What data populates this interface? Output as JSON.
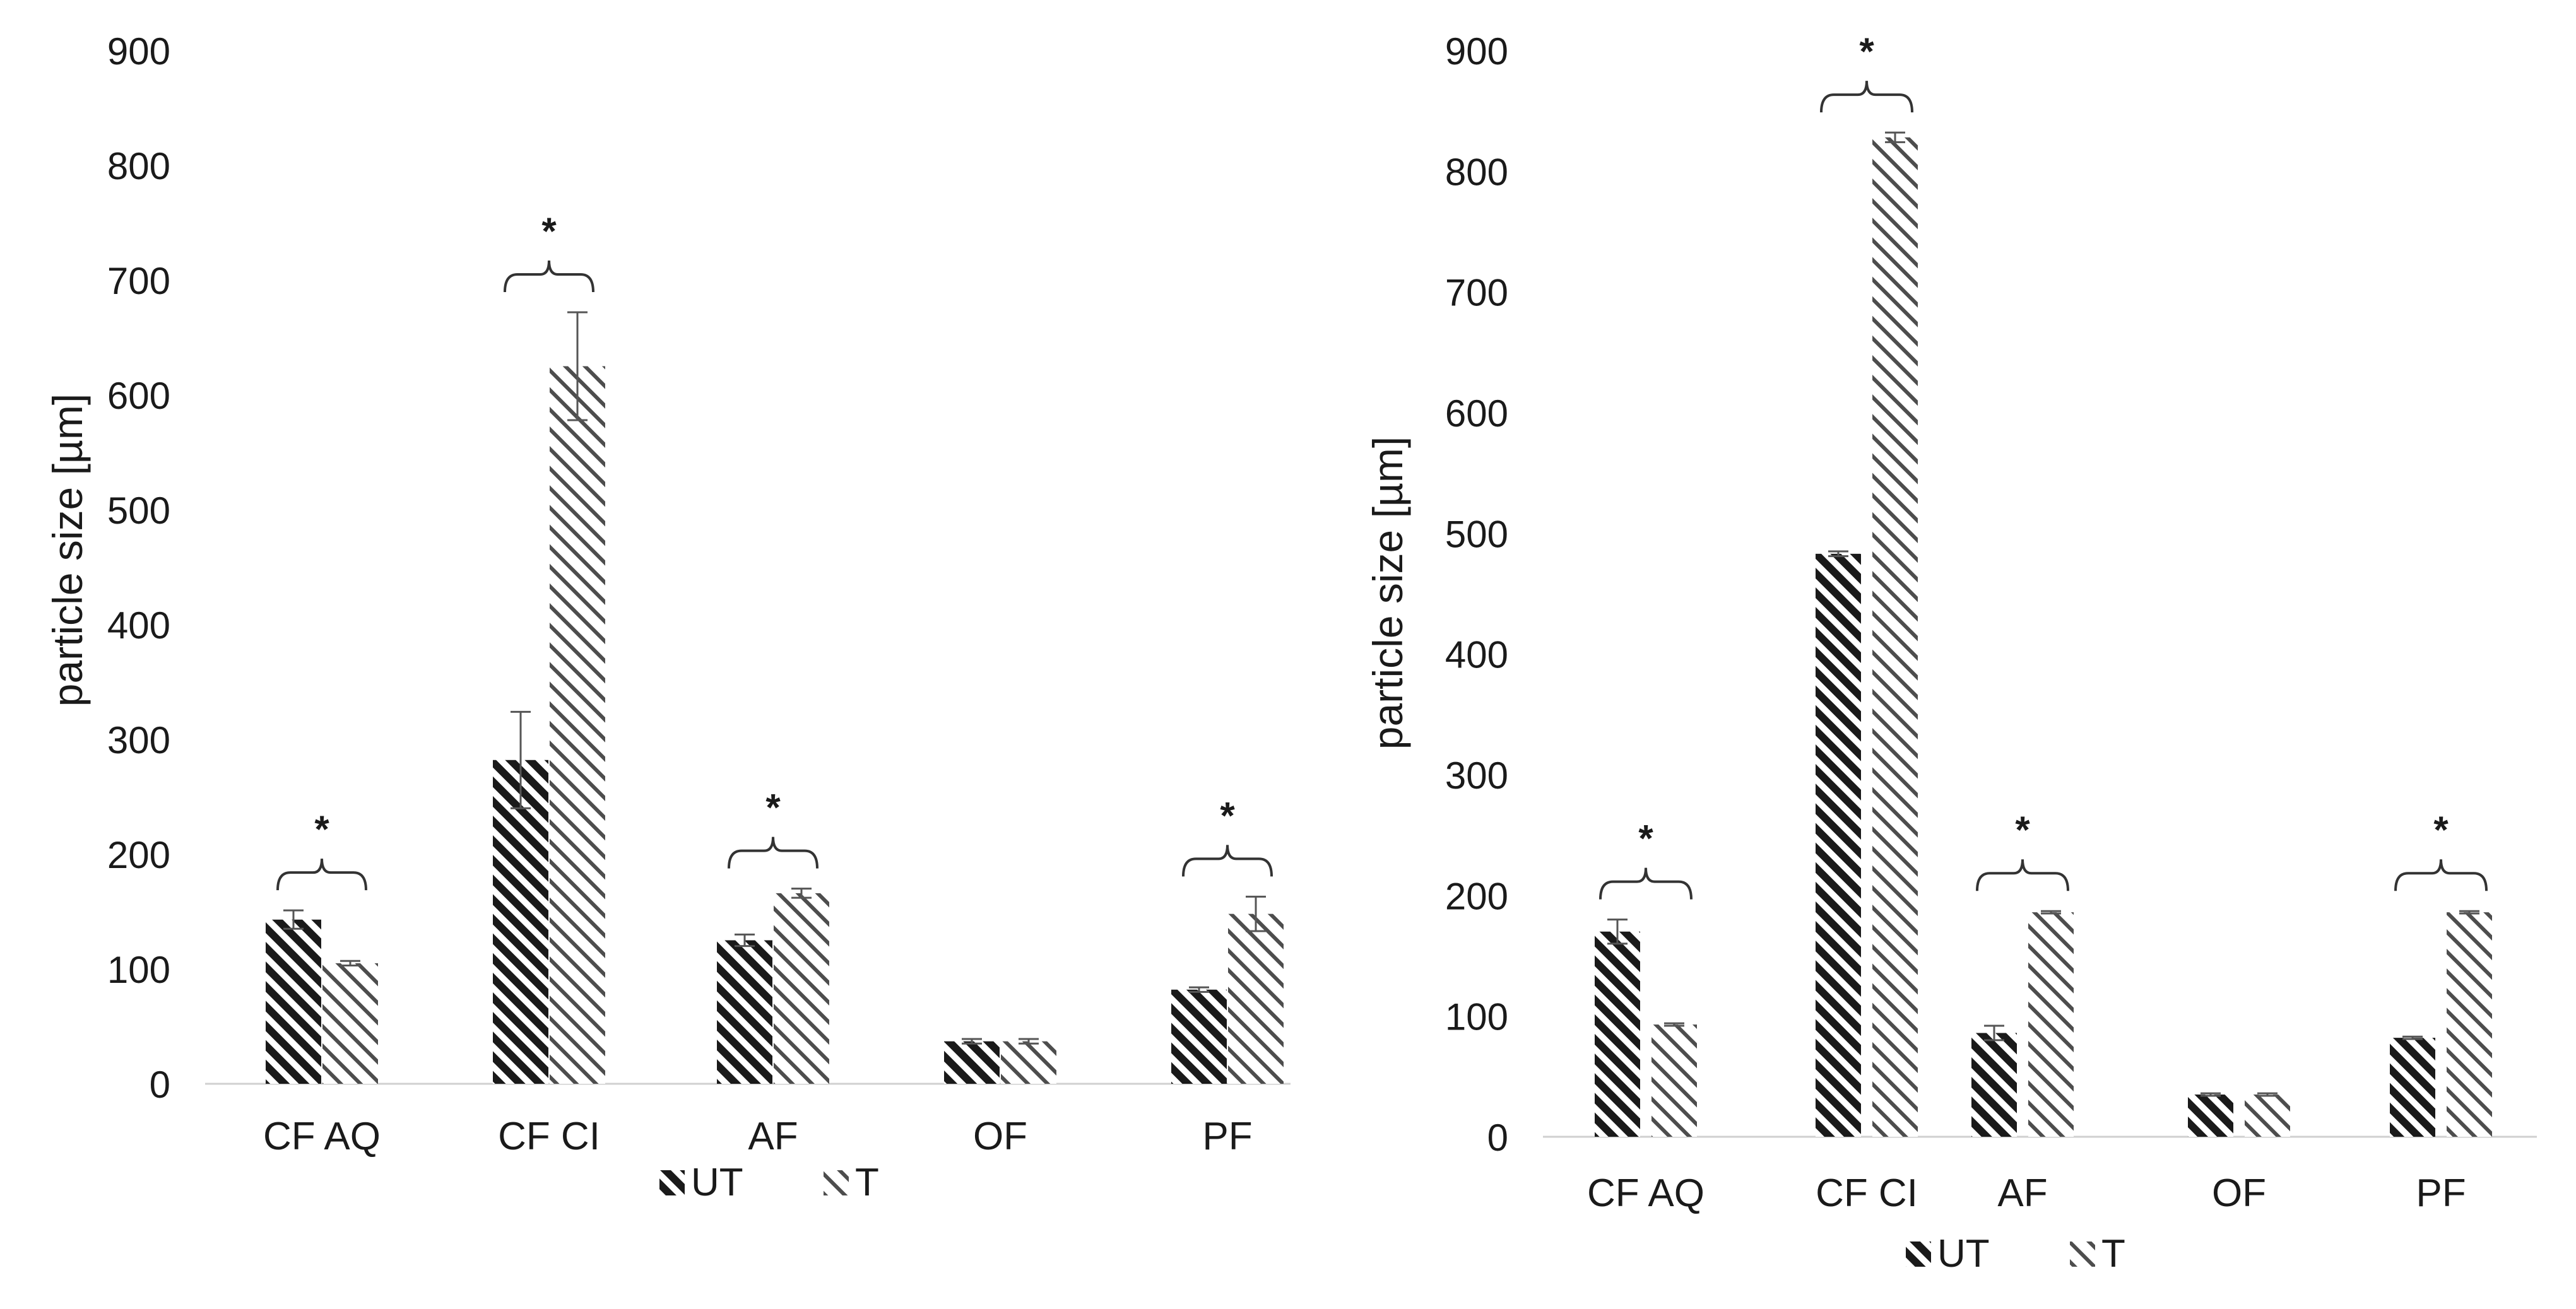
{
  "chart_data": [
    {
      "type": "bar",
      "title": "",
      "xlabel": "",
      "ylabel": "particle size [µm]",
      "ylim": [
        0,
        900
      ],
      "yticks": [
        "0",
        "100",
        "200",
        "300",
        "400",
        "500",
        "600",
        "700",
        "800",
        "900"
      ],
      "grid": false,
      "legend_position": "bottom",
      "categories": [
        "CF AQ",
        "CF CI",
        "AF",
        "OF",
        "PF"
      ],
      "series": [
        {
          "name": "UT",
          "pattern": "dense-diagonal",
          "color": "#1a1a1a",
          "values": [
            143,
            282,
            125,
            37,
            82
          ],
          "errors": [
            8,
            42,
            5,
            2,
            2
          ]
        },
        {
          "name": "T",
          "pattern": "sparse-diagonal",
          "color": "#4d4d4d",
          "values": [
            105,
            625,
            166,
            37,
            148
          ],
          "errors": [
            2,
            47,
            4,
            2,
            15
          ]
        }
      ],
      "significance": [
        {
          "category": "CF AQ",
          "label": "*"
        },
        {
          "category": "CF CI",
          "label": "*"
        },
        {
          "category": "AF",
          "label": "*"
        },
        {
          "category": "PF",
          "label": "*"
        }
      ]
    },
    {
      "type": "bar",
      "title": "",
      "xlabel": "",
      "ylabel": "particle size [µm]",
      "ylim": [
        0,
        900
      ],
      "yticks": [
        "0",
        "100",
        "200",
        "300",
        "400",
        "500",
        "600",
        "700",
        "800",
        "900"
      ],
      "grid": false,
      "legend_position": "bottom",
      "categories": [
        "CF AQ",
        "CF CI",
        "AF",
        "OF",
        "PF"
      ],
      "series": [
        {
          "name": "UT",
          "pattern": "dense-diagonal",
          "color": "#1a1a1a",
          "values": [
            170,
            483,
            86,
            35,
            82
          ],
          "errors": [
            10,
            2,
            6,
            1,
            1
          ]
        },
        {
          "name": "T",
          "pattern": "sparse-diagonal",
          "color": "#4d4d4d",
          "values": [
            93,
            828,
            186,
            35,
            186
          ],
          "errors": [
            1,
            4,
            1,
            1,
            1
          ]
        }
      ],
      "significance": [
        {
          "category": "CF AQ",
          "label": "*"
        },
        {
          "category": "CF CI",
          "label": "*"
        },
        {
          "category": "AF",
          "label": "*"
        },
        {
          "category": "PF",
          "label": "*"
        }
      ]
    }
  ]
}
